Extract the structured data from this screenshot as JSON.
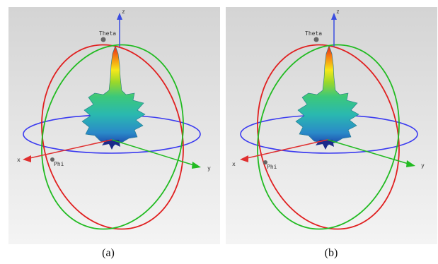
{
  "panels": [
    {
      "caption": "(a)",
      "labels": {
        "z": "z",
        "theta": "Theta",
        "x": "x",
        "phi": "Phi",
        "y": "y"
      }
    },
    {
      "caption": "(b)",
      "labels": {
        "z": "z",
        "theta": "Theta",
        "x": "x",
        "phi": "Phi",
        "y": "y"
      }
    }
  ],
  "colors": {
    "background_top": "#d4d4d4",
    "background_bottom": "#f4f4f4",
    "phi_ring": "#3a3af0",
    "theta_ring_red": "#e02020",
    "theta_ring_green": "#22bb22",
    "z_axis": "#3a4de0",
    "x_axis": "#e03030",
    "y_axis": "#22bb22"
  }
}
